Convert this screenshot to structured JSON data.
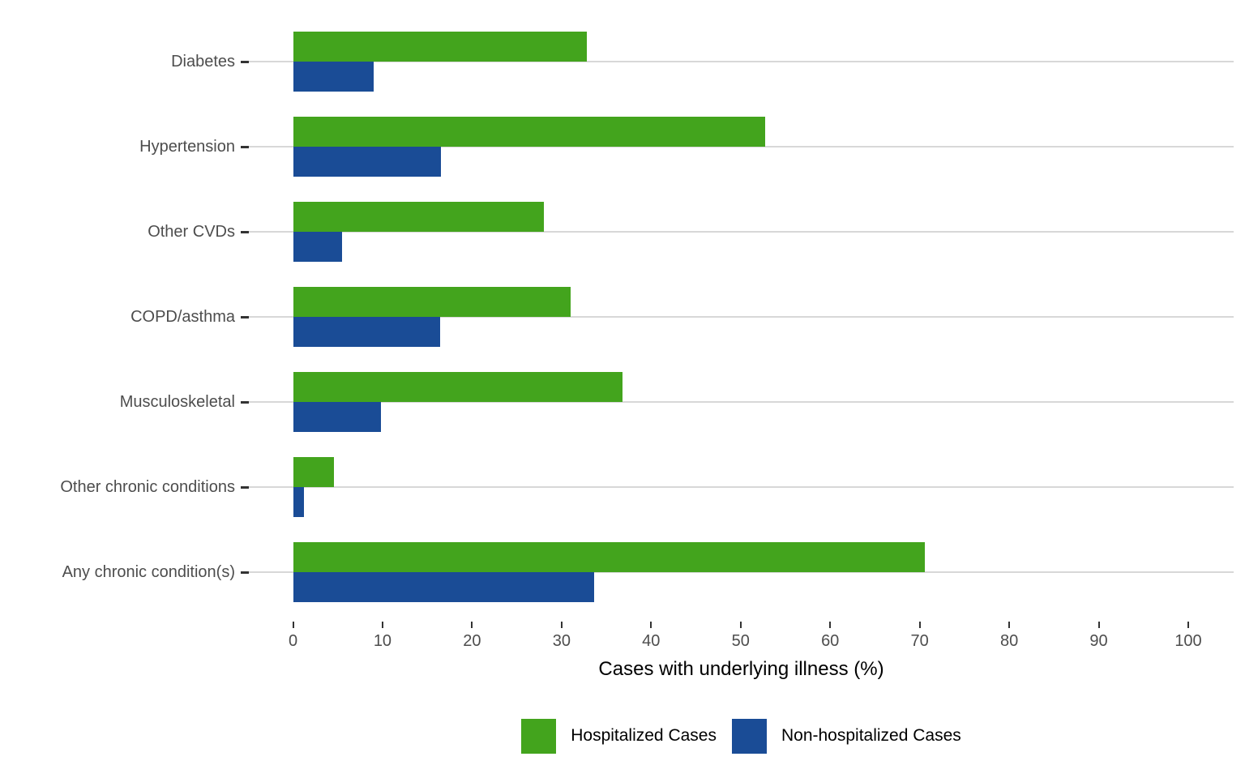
{
  "chart_data": {
    "type": "bar",
    "orientation": "horizontal",
    "title": "",
    "xlabel": "Cases with underlying illness (%)",
    "ylabel": "",
    "categories": [
      "Diabetes",
      "Hypertension",
      "Other CVDs",
      "COPD/asthma",
      "Musculoskeletal",
      "Other chronic conditions",
      "Any chronic condition(s)"
    ],
    "series": [
      {
        "name": "Hospitalized Cases",
        "color": "#43A41D",
        "values": [
          32.8,
          52.7,
          28.0,
          31.0,
          36.8,
          4.6,
          70.6
        ]
      },
      {
        "name": "Non-hospitalized Cases",
        "color": "#1A4C96",
        "values": [
          9.0,
          16.5,
          5.5,
          16.4,
          9.8,
          1.2,
          33.6
        ]
      }
    ],
    "x_ticks": [
      0,
      10,
      20,
      30,
      40,
      50,
      60,
      70,
      80,
      90,
      100
    ],
    "xlim": [
      0,
      100
    ],
    "grid": "horizontal-major-only",
    "legend_position": "bottom",
    "colors": {
      "gridline": "#D8D8D8",
      "tick_mark": "#333333",
      "tick_label": "#4D4D4D",
      "axis_title": "#000000",
      "background": "#FFFFFF"
    }
  }
}
